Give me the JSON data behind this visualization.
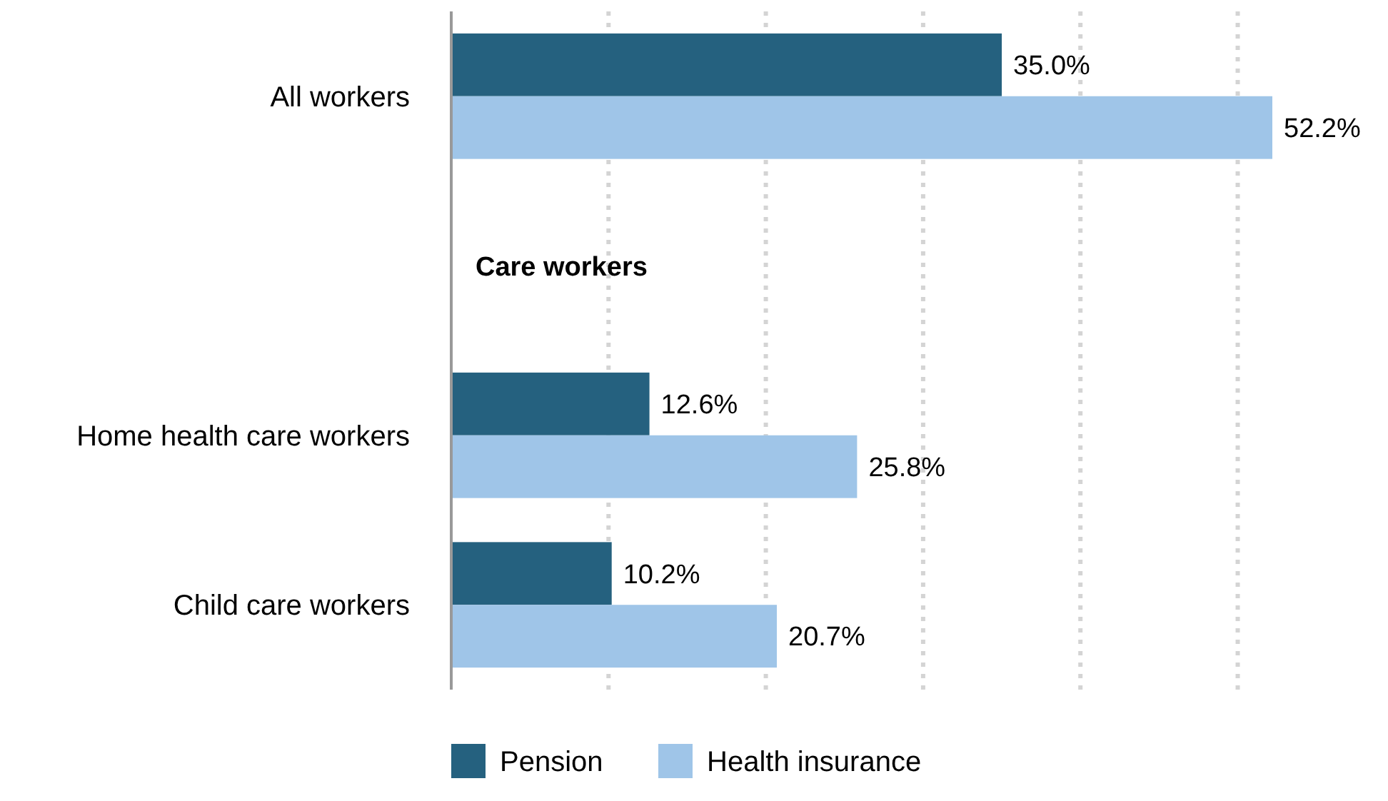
{
  "chart_data": {
    "type": "bar",
    "orientation": "horizontal",
    "categories": [
      "All workers",
      null,
      "Home health care workers",
      "Child care workers"
    ],
    "series": [
      {
        "name": "Pension",
        "color": "#25617f",
        "values": [
          35.0,
          null,
          12.6,
          10.2
        ],
        "value_labels": [
          "35.0%",
          null,
          "12.6%",
          "10.2%"
        ]
      },
      {
        "name": "Health insurance",
        "color": "#9fc5e8",
        "values": [
          52.2,
          null,
          25.8,
          20.7
        ],
        "value_labels": [
          "52.2%",
          null,
          "25.8%",
          "20.7%"
        ]
      }
    ],
    "annotations": [
      "Care workers"
    ],
    "xticks": [
      {
        "value": 0,
        "label": null
      },
      {
        "value": 10,
        "label": null
      },
      {
        "value": 20,
        "label": null
      },
      {
        "value": 30,
        "label": null
      },
      {
        "value": 40,
        "label": null
      },
      {
        "value": 50,
        "label": null
      }
    ],
    "grid": "x",
    "tick_labels": "y",
    "legend": "bottom"
  }
}
